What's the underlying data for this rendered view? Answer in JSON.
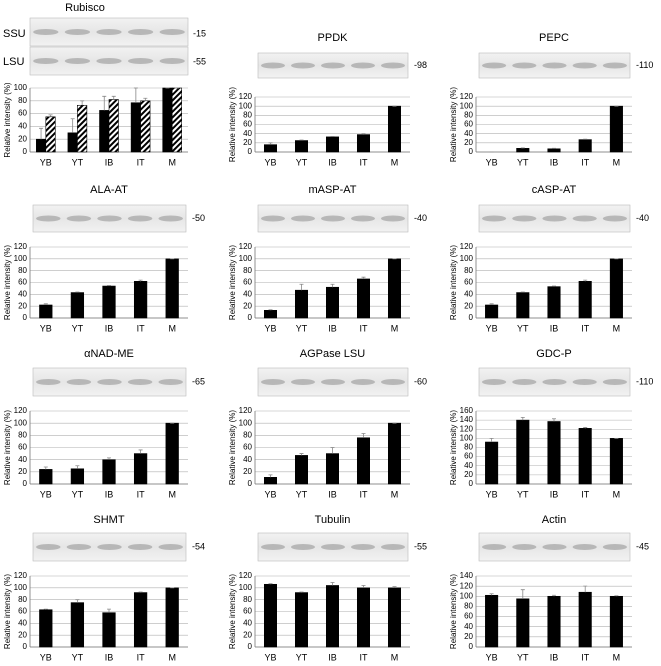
{
  "chart_data": [
    {
      "type": "bar",
      "title": "Rubisco",
      "ylabel": "Relative intensity (%)",
      "categories": [
        "YB",
        "YT",
        "IB",
        "IT",
        "M"
      ],
      "series": [
        {
          "name": "SSU",
          "color": "#000000",
          "values": [
            20,
            30,
            65,
            77,
            100
          ],
          "errors": [
            17,
            22,
            22,
            23,
            0
          ]
        },
        {
          "name": "LSU",
          "color": "#000000",
          "pattern": "hatch",
          "values": [
            55,
            73,
            82,
            80,
            100
          ],
          "errors": [
            3,
            7,
            5,
            4,
            0
          ]
        }
      ],
      "mw": [
        "-15",
        "-55"
      ],
      "ylim": [
        0,
        100
      ],
      "yticks": [
        0,
        20,
        40,
        60,
        80,
        100
      ],
      "grid": true
    },
    {
      "type": "bar",
      "title": "PPDK",
      "ylabel": "Relative intensity (%)",
      "categories": [
        "YB",
        "YT",
        "IB",
        "IT",
        "M"
      ],
      "series": [
        {
          "color": "#000000",
          "values": [
            16,
            25,
            33,
            38,
            100
          ],
          "errors": [
            4,
            1,
            1,
            2,
            0
          ]
        }
      ],
      "mw": [
        "-98"
      ],
      "ylim": [
        0,
        120
      ],
      "yticks": [
        0,
        20,
        40,
        60,
        80,
        100,
        120
      ],
      "grid": true
    },
    {
      "type": "bar",
      "title": "PEPC",
      "ylabel": "Relative intensity (%)",
      "categories": [
        "YB",
        "YT",
        "IB",
        "IT",
        "M"
      ],
      "series": [
        {
          "color": "#000000",
          "values": [
            0,
            8,
            7,
            27,
            100
          ],
          "errors": [
            0,
            1,
            1,
            1,
            0
          ]
        }
      ],
      "mw": [
        "-110"
      ],
      "ylim": [
        0,
        120
      ],
      "yticks": [
        0,
        20,
        40,
        60,
        80,
        100,
        120
      ],
      "grid": true
    },
    {
      "type": "bar",
      "title": "ALA-AT",
      "ylabel": "Relative intensity (%)",
      "categories": [
        "YB",
        "YT",
        "IB",
        "IT",
        "M"
      ],
      "series": [
        {
          "color": "#000000",
          "values": [
            22,
            43,
            54,
            62,
            100
          ],
          "errors": [
            2,
            1,
            1,
            2,
            0
          ]
        }
      ],
      "mw": [
        "-50"
      ],
      "ylim": [
        0,
        120
      ],
      "yticks": [
        0,
        20,
        40,
        60,
        80,
        100,
        120
      ],
      "grid": true
    },
    {
      "type": "bar",
      "title": "mASP-AT",
      "ylabel": "Relative intensity (%)",
      "categories": [
        "YB",
        "YT",
        "IB",
        "IT",
        "M"
      ],
      "series": [
        {
          "color": "#000000",
          "values": [
            13,
            47,
            52,
            66,
            100
          ],
          "errors": [
            1,
            10,
            5,
            3,
            0
          ]
        }
      ],
      "mw": [
        "-40"
      ],
      "ylim": [
        0,
        120
      ],
      "yticks": [
        0,
        20,
        40,
        60,
        80,
        100,
        120
      ],
      "grid": true
    },
    {
      "type": "bar",
      "title": "cASP-AT",
      "ylabel": "Relative intensity (%)",
      "categories": [
        "YB",
        "YT",
        "IB",
        "IT",
        "M"
      ],
      "series": [
        {
          "color": "#000000",
          "values": [
            22,
            43,
            53,
            62,
            100
          ],
          "errors": [
            2,
            1,
            1,
            2,
            0
          ]
        }
      ],
      "mw": [
        "-40"
      ],
      "ylim": [
        0,
        120
      ],
      "yticks": [
        0,
        20,
        40,
        60,
        80,
        100,
        120
      ],
      "grid": true
    },
    {
      "type": "bar",
      "title": "αNAD-ME",
      "ylabel": "Relative intensity (%)",
      "categories": [
        "YB",
        "YT",
        "IB",
        "IT",
        "M"
      ],
      "series": [
        {
          "color": "#000000",
          "values": [
            24,
            25,
            40,
            50,
            100
          ],
          "errors": [
            4,
            5,
            3,
            6,
            0
          ]
        }
      ],
      "mw": [
        "-65"
      ],
      "ylim": [
        0,
        120
      ],
      "yticks": [
        0,
        20,
        40,
        60,
        80,
        100,
        120
      ],
      "grid": true
    },
    {
      "type": "bar",
      "title": "AGPase LSU",
      "ylabel": "Relative intensity (%)",
      "categories": [
        "YB",
        "YT",
        "IB",
        "IT",
        "M"
      ],
      "series": [
        {
          "color": "#000000",
          "values": [
            11,
            47,
            50,
            76,
            100
          ],
          "errors": [
            4,
            3,
            10,
            7,
            0
          ]
        }
      ],
      "mw": [
        "-60"
      ],
      "ylim": [
        0,
        120
      ],
      "yticks": [
        0,
        20,
        40,
        60,
        80,
        100,
        120
      ],
      "grid": true
    },
    {
      "type": "bar",
      "title": "GDC-P",
      "ylabel": "Relative intensity (%)",
      "categories": [
        "YB",
        "YT",
        "IB",
        "IT",
        "M"
      ],
      "series": [
        {
          "color": "#000000",
          "values": [
            92,
            140,
            137,
            122,
            100
          ],
          "errors": [
            8,
            6,
            6,
            2,
            0
          ]
        }
      ],
      "mw": [
        "-110"
      ],
      "ylim": [
        0,
        160
      ],
      "yticks": [
        0,
        20,
        40,
        60,
        80,
        100,
        120,
        140,
        160
      ],
      "grid": true
    },
    {
      "type": "bar",
      "title": "SHMT",
      "ylabel": "Relative intensity (%)",
      "categories": [
        "YB",
        "YT",
        "IB",
        "IT",
        "M"
      ],
      "series": [
        {
          "color": "#000000",
          "values": [
            63,
            75,
            58,
            92,
            100
          ],
          "errors": [
            1,
            5,
            6,
            1,
            0
          ]
        }
      ],
      "mw": [
        "-54"
      ],
      "ylim": [
        0,
        120
      ],
      "yticks": [
        0,
        20,
        40,
        60,
        80,
        100,
        120
      ],
      "grid": true
    },
    {
      "type": "bar",
      "title": "Tubulin",
      "ylabel": "Relative intensity (%)",
      "categories": [
        "YB",
        "YT",
        "IB",
        "IT",
        "M"
      ],
      "series": [
        {
          "color": "#000000",
          "values": [
            106,
            92,
            104,
            100,
            100
          ],
          "errors": [
            1,
            1,
            5,
            4,
            2
          ]
        }
      ],
      "mw": [
        "-55"
      ],
      "ylim": [
        0,
        120
      ],
      "yticks": [
        0,
        20,
        40,
        60,
        80,
        100,
        120
      ],
      "grid": true
    },
    {
      "type": "bar",
      "title": "Actin",
      "ylabel": "Relative intensity (%)",
      "categories": [
        "YB",
        "YT",
        "IB",
        "IT",
        "M"
      ],
      "series": [
        {
          "color": "#000000",
          "values": [
            102,
            95,
            100,
            108,
            100
          ],
          "errors": [
            3,
            18,
            2,
            12,
            1
          ]
        }
      ],
      "mw": [
        "-45"
      ],
      "ylim": [
        0,
        140
      ],
      "yticks": [
        0,
        20,
        40,
        60,
        80,
        100,
        120,
        140
      ],
      "grid": true
    }
  ]
}
